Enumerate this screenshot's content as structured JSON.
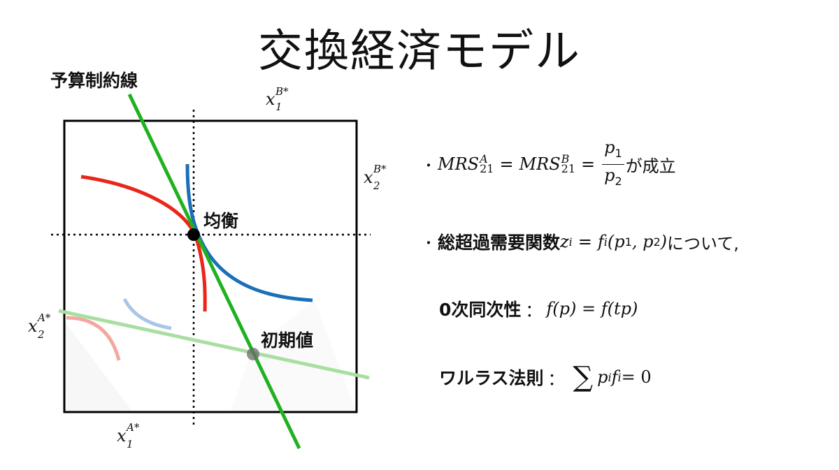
{
  "title": "交換経済モデル",
  "diagram": {
    "budget_line_label": "予算制約線",
    "equilibrium_label": "均衡",
    "initial_label": "初期値",
    "axis_labels": {
      "x1_B": {
        "base": "x",
        "sub": "1",
        "sup": "B*"
      },
      "x2_B": {
        "base": "x",
        "sub": "2",
        "sup": "B*"
      },
      "x1_A": {
        "base": "x",
        "sub": "1",
        "sup": "A*"
      },
      "x2_A": {
        "base": "x",
        "sub": "2",
        "sup": "A*"
      }
    },
    "colors": {
      "budget_line": "#1fb21f",
      "budget_line_initial": "#a8dfa0",
      "indifference_A": "#e8261a",
      "indifference_A_faint": "#f2a8a0",
      "indifference_B": "#1a6fb8",
      "indifference_B_faint": "#a9c6e6",
      "equilibrium_point": "#000000",
      "initial_point": "#6b6b6b"
    }
  },
  "conditions": {
    "mrs": {
      "bullet": "・",
      "lhs": "MRS",
      "lhs_sup_A": "A",
      "lhs_sub": "21",
      "eq": "=",
      "rhs": "MRS",
      "rhs_sup_B": "B",
      "rhs_sub": "21",
      "frac_num_base": "p",
      "frac_num_sub": "1",
      "frac_den_base": "p",
      "frac_den_sub": "2",
      "suffix": "が成立"
    },
    "excess_demand": {
      "bullet": "・",
      "label": "総超過需要関数",
      "z": "z",
      "z_sub": "i",
      "eq": "=",
      "f": "f",
      "f_sub": "i",
      "args": "(p",
      "arg1_sub": "1",
      "comma": ", p",
      "arg2_sub": "2",
      "close": ")",
      "suffix": "について,"
    },
    "homogeneity": {
      "label": "0次同次性",
      "colon": "：",
      "formula": "f(p) = f(tp)"
    },
    "walras": {
      "label": "ワルラス法則",
      "colon": "：",
      "sigma": "∑",
      "p": "p",
      "p_sub": "i",
      "f": "f",
      "f_sub": "i",
      "rest": " = 0"
    }
  }
}
